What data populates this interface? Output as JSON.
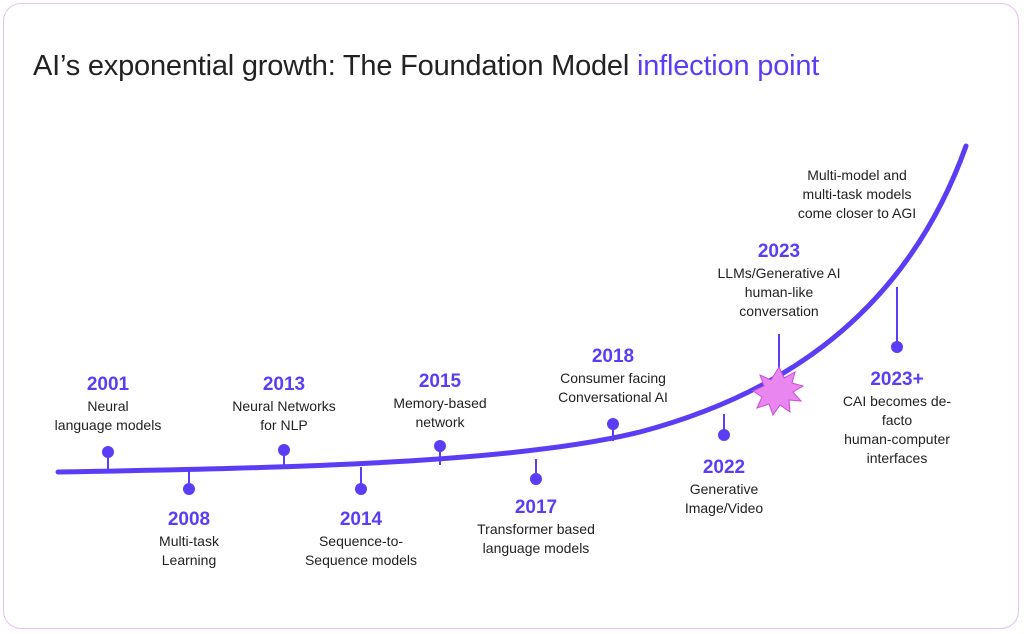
{
  "title": {
    "main": "AI’s exponential growth: The Foundation Model ",
    "highlight": "inflection point"
  },
  "colors": {
    "accent": "#5b3df5",
    "burst": "#e986f0",
    "text": "#222222",
    "border": "#e6c3ec"
  },
  "events": [
    {
      "year": "2001",
      "desc": "Neural\nlanguage models"
    },
    {
      "year": "2008",
      "desc": "Multi-task\nLearning"
    },
    {
      "year": "2013",
      "desc": "Neural Networks\nfor NLP"
    },
    {
      "year": "2014",
      "desc": "Sequence-to-\nSequence models"
    },
    {
      "year": "2015",
      "desc": "Memory-based\nnetwork"
    },
    {
      "year": "2017",
      "desc": "Transformer based\nlanguage models"
    },
    {
      "year": "2018",
      "desc": "Consumer facing\nConversational AI"
    },
    {
      "year": "2022",
      "desc": "Generative\nImage/Video"
    },
    {
      "year": "2023",
      "desc": "LLMs/Generative AI\nhuman-like\nconversation"
    },
    {
      "year": "2023+",
      "desc": "CAI becomes de-facto\nhuman-computer\ninterfaces"
    }
  ],
  "future_note": "Multi-model and\nmulti-task models\ncome closer to AGI"
}
